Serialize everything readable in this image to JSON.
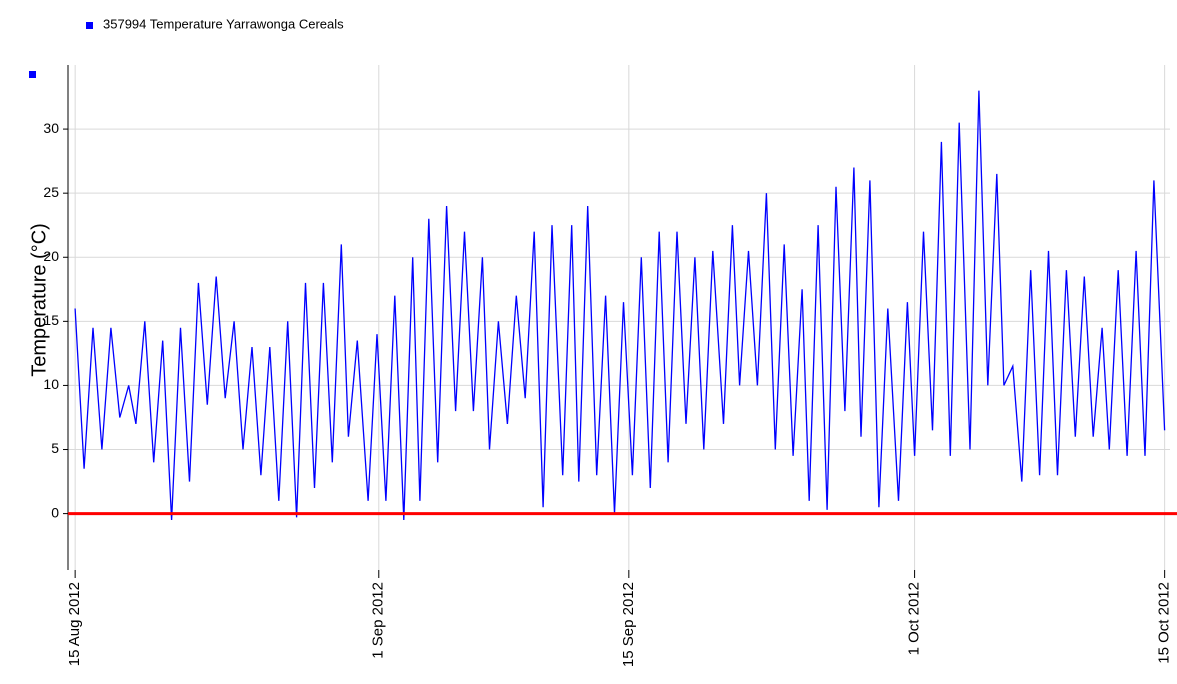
{
  "chart_data": {
    "type": "line",
    "ylabel": "Temperature (°C)",
    "xlim": [
      -0.4,
      61.3
    ],
    "ylim": [
      -4.4,
      35
    ],
    "xticks": [
      {
        "value": 0,
        "label": "15 Aug 2012"
      },
      {
        "value": 17,
        "label": "1 Sep 2012"
      },
      {
        "value": 31,
        "label": "15 Sep 2012"
      },
      {
        "value": 47,
        "label": "1 Oct 2012"
      },
      {
        "value": 61,
        "label": "15 Oct 2012"
      }
    ],
    "yticks": [
      0,
      5,
      10,
      15,
      20,
      25,
      30
    ],
    "grid": true,
    "reference_line": {
      "value": 0,
      "color": "#ff0000"
    },
    "x": [
      0,
      0.5,
      1.0,
      1.5,
      2.0,
      2.5,
      3.0,
      3.4,
      3.9,
      4.4,
      4.9,
      5.4,
      5.9,
      6.4,
      6.9,
      7.4,
      7.9,
      8.4,
      8.9,
      9.4,
      9.9,
      10.4,
      10.9,
      11.4,
      11.9,
      12.4,
      12.9,
      13.4,
      13.9,
      14.4,
      14.9,
      15.3,
      15.8,
      16.4,
      16.9,
      17.4,
      17.9,
      18.4,
      18.9,
      19.3,
      19.8,
      20.3,
      20.8,
      21.3,
      21.8,
      22.3,
      22.8,
      23.2,
      23.7,
      24.2,
      24.7,
      25.2,
      25.7,
      26.2,
      26.7,
      27.3,
      27.8,
      28.2,
      28.7,
      29.2,
      29.7,
      30.2,
      30.7,
      31.2,
      31.7,
      32.2,
      32.7,
      33.2,
      33.7,
      34.2,
      34.7,
      35.2,
      35.7,
      36.3,
      36.8,
      37.2,
      37.7,
      38.2,
      38.7,
      39.2,
      39.7,
      40.2,
      40.7,
      41.1,
      41.6,
      42.1,
      42.6,
      43.1,
      43.6,
      44.0,
      44.5,
      45.0,
      45.5,
      46.1,
      46.6,
      47.0,
      47.5,
      48.0,
      48.5,
      49.0,
      49.5,
      50.1,
      50.6,
      51.1,
      51.6,
      52.0,
      52.5,
      53.0,
      53.5,
      54.0,
      54.5,
      55.0,
      55.5,
      56.0,
      56.5,
      57.0,
      57.5,
      57.9,
      58.4,
      58.9,
      59.4,
      59.9,
      60.4,
      61.0
    ],
    "series": [
      {
        "name": "357994  Temperature Yarrawonga Cereals",
        "color": "#0000ff",
        "values": [
          16,
          3.5,
          14.5,
          5,
          14.5,
          7.5,
          10,
          7,
          15,
          4,
          13.5,
          -0.5,
          14.5,
          2.5,
          18,
          8.5,
          18.5,
          9,
          15,
          5,
          13,
          3,
          13,
          1,
          15,
          -0.3,
          18,
          2,
          18,
          4,
          21,
          6,
          13.5,
          1,
          14,
          1,
          17,
          -0.5,
          20,
          1,
          23,
          4,
          24,
          8,
          22,
          8,
          20,
          5,
          15,
          7,
          17,
          9,
          22,
          0.5,
          22.5,
          3,
          22.5,
          2.5,
          24,
          3,
          17,
          0,
          16.5,
          3,
          20,
          2,
          22,
          4,
          22,
          7,
          20,
          5,
          20.5,
          7,
          22.5,
          10,
          20.5,
          10,
          25,
          5,
          21,
          4.5,
          17.5,
          1,
          22.5,
          0.3,
          25.5,
          8,
          27,
          6,
          26,
          0.5,
          16,
          1,
          16.5,
          4.5,
          22,
          6.5,
          29,
          4.5,
          30.5,
          5,
          33,
          10,
          26.5,
          10,
          11.5,
          2.5,
          19,
          3,
          20.5,
          3,
          19,
          6,
          18.5,
          6,
          14.5,
          5,
          19,
          4.5,
          20.5,
          4.5,
          26,
          6.5
        ]
      }
    ]
  }
}
